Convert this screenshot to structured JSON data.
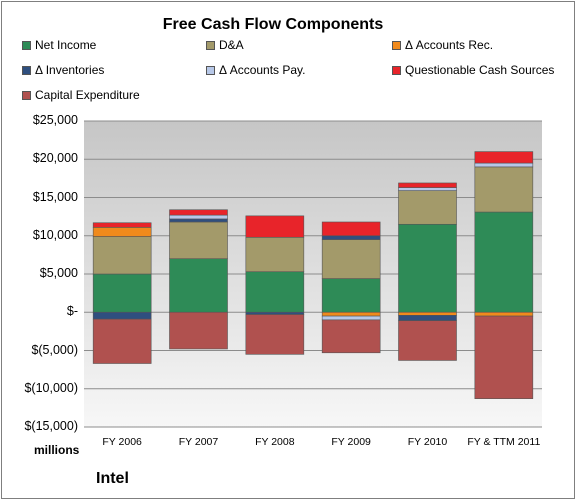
{
  "chart_data": {
    "type": "bar",
    "stacked": true,
    "title": "Free Cash Flow Components",
    "categories": [
      "FY 2006",
      "FY 2007",
      "FY 2008",
      "FY 2009",
      "FY 2010",
      "FY & TTM 2011"
    ],
    "ylim": [
      -15000,
      25000
    ],
    "yticks": [
      25000,
      20000,
      15000,
      10000,
      5000,
      0,
      -5000,
      -10000,
      -15000
    ],
    "ytick_labels": [
      "$25,000",
      "$20,000",
      "$15,000",
      "$10,000",
      "$5,000",
      "$-",
      "$(5,000)",
      "$(10,000)",
      "$(15,000)"
    ],
    "units_label": "millions",
    "legend_position": "top",
    "grid": true,
    "series": [
      {
        "name": "Net Income",
        "color": "#2e8b57",
        "values": [
          5000,
          7000,
          5300,
          4400,
          11500,
          13100
        ]
      },
      {
        "name": "D&A",
        "color": "#a39a6a",
        "values": [
          4900,
          4800,
          4500,
          5100,
          4400,
          5900
        ]
      },
      {
        "name": "Δ Accounts Rec.",
        "color": "#f08a1c",
        "values": [
          1200,
          0,
          0,
          -500,
          -400,
          -500
        ]
      },
      {
        "name": "Δ Inventories",
        "color": "#2f4f7f",
        "values": [
          -900,
          400,
          -300,
          500,
          -700,
          0
        ]
      },
      {
        "name": "Δ Accounts Pay.",
        "color": "#b7c8e8",
        "values": [
          0,
          500,
          0,
          -500,
          400,
          500
        ]
      },
      {
        "name": "Questionable Cash Sources",
        "color": "#e8242a",
        "values": [
          600,
          700,
          2800,
          1800,
          600,
          1500
        ]
      },
      {
        "name": "Capital Expenditure",
        "color": "#b0514f",
        "values": [
          -5800,
          -4800,
          -5200,
          -4300,
          -5200,
          -10800
        ]
      }
    ],
    "company": "Intel"
  }
}
